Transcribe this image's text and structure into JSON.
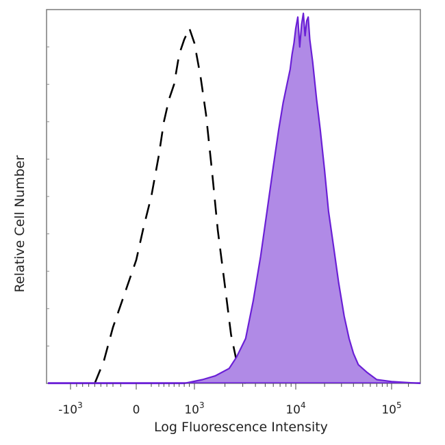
{
  "chart_data": {
    "type": "area",
    "title": "",
    "xlabel": "Log Fluorescence Intensity",
    "ylabel": "Relative Cell Number",
    "x_scale": "biexponential",
    "xlim": [
      -3000,
      200000
    ],
    "ylim": [
      0,
      100
    ],
    "grid": false,
    "legend": "none",
    "x_ticks": [
      {
        "value": -1000,
        "base": "-10",
        "exp": "3"
      },
      {
        "value": 0,
        "base": "0",
        "exp": ""
      },
      {
        "value": 1000,
        "base": "10",
        "exp": "3"
      },
      {
        "value": 10000,
        "base": "10",
        "exp": "4"
      },
      {
        "value": 100000,
        "base": "10",
        "exp": "5"
      }
    ],
    "series": [
      {
        "style": "dashed",
        "color": "#000000",
        "fill": "none",
        "x": [
          -600,
          -450,
          -300,
          -150,
          0,
          100,
          200,
          300,
          400,
          500,
          600,
          700,
          800,
          900,
          1000,
          1150,
          1300,
          1500,
          1700,
          2000,
          2300,
          2700,
          3200
        ],
        "y": [
          0,
          6,
          15,
          24,
          33,
          42,
          50,
          61,
          70,
          76,
          80,
          88,
          92,
          95,
          91,
          82,
          72,
          56,
          41,
          26,
          13,
          4,
          0
        ]
      },
      {
        "style": "filled",
        "color": "#6a1fd6",
        "fill": "#b08ae6",
        "x": [
          -3000,
          800,
          1200,
          1600,
          2200,
          2600,
          3200,
          3800,
          4500,
          5200,
          6000,
          6800,
          7500,
          8200,
          8800,
          9200,
          9600,
          10000,
          10500,
          11000,
          11500,
          12000,
          12500,
          13000,
          13500,
          14000,
          15000,
          16500,
          18000,
          20000,
          22000,
          25000,
          28000,
          32000,
          36000,
          40000,
          45000,
          55000,
          70000,
          100000,
          200000
        ],
        "y": [
          0,
          0,
          1,
          2,
          4,
          7,
          12,
          22,
          34,
          46,
          58,
          68,
          75,
          80,
          84,
          88,
          91,
          95,
          98,
          90,
          96,
          99,
          93,
          97,
          98,
          92,
          86,
          76,
          68,
          57,
          46,
          36,
          27,
          18,
          12,
          8,
          5,
          3,
          1,
          0.5,
          0
        ]
      }
    ]
  }
}
